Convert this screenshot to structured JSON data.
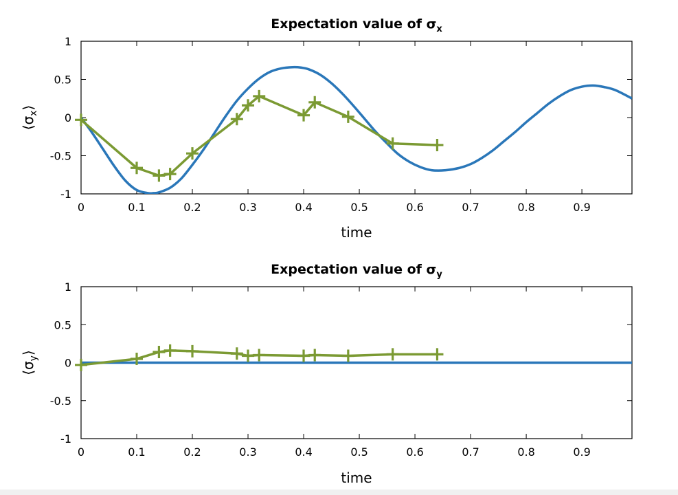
{
  "colors": {
    "exact": "#2a77b9",
    "simulated": "#7b9a33"
  },
  "chart_data": [
    {
      "type": "line",
      "title": "Expectation value of σ",
      "title_subscript": "x",
      "xlabel": "time",
      "ylabel": "⟨σ",
      "ylabel_subscript": "x",
      "ylabel_close": "⟩",
      "xlim": [
        0,
        0.99
      ],
      "ylim": [
        -1,
        1
      ],
      "xticks": [
        0,
        0.1,
        0.2,
        0.3,
        0.4,
        0.5,
        0.6,
        0.7,
        0.8,
        0.9
      ],
      "xtick_labels": [
        "0",
        "0.1",
        "0.2",
        "0.3",
        "0.4",
        "0.5",
        "0.6",
        "0.7",
        "0.8",
        "0.9"
      ],
      "yticks": [
        1,
        0.5,
        0,
        -0.5,
        -1
      ],
      "ytick_labels": [
        "1",
        "0.5",
        "0",
        "-0.5",
        "-1"
      ],
      "series": [
        {
          "style": "line",
          "color": "#2a77b9",
          "x": [
            0,
            0.02,
            0.04,
            0.06,
            0.08,
            0.1,
            0.12,
            0.13,
            0.14,
            0.16,
            0.18,
            0.2,
            0.22,
            0.24,
            0.26,
            0.28,
            0.3,
            0.32,
            0.34,
            0.36,
            0.38,
            0.395,
            0.41,
            0.43,
            0.45,
            0.47,
            0.49,
            0.51,
            0.53,
            0.55,
            0.57,
            0.59,
            0.61,
            0.63,
            0.655,
            0.68,
            0.7,
            0.72,
            0.74,
            0.76,
            0.78,
            0.8,
            0.82,
            0.84,
            0.86,
            0.88,
            0.9,
            0.92,
            0.94,
            0.96,
            0.99
          ],
          "y": [
            0,
            -0.2,
            -0.42,
            -0.64,
            -0.83,
            -0.95,
            -0.99,
            -0.99,
            -0.98,
            -0.92,
            -0.8,
            -0.62,
            -0.42,
            -0.2,
            0.02,
            0.22,
            0.38,
            0.51,
            0.6,
            0.645,
            0.66,
            0.655,
            0.63,
            0.56,
            0.45,
            0.31,
            0.15,
            -0.02,
            -0.19,
            -0.34,
            -0.48,
            -0.58,
            -0.65,
            -0.69,
            -0.69,
            -0.66,
            -0.61,
            -0.53,
            -0.43,
            -0.31,
            -0.19,
            -0.06,
            0.06,
            0.18,
            0.28,
            0.36,
            0.405,
            0.42,
            0.4,
            0.36,
            0.25
          ]
        },
        {
          "style": "line+marker",
          "marker": "+",
          "color": "#7b9a33",
          "x": [
            0,
            0.1,
            0.14,
            0.16,
            0.2,
            0.28,
            0.3,
            0.32,
            0.4,
            0.42,
            0.48,
            0.56,
            0.64
          ],
          "y": [
            -0.03,
            -0.66,
            -0.76,
            -0.74,
            -0.47,
            -0.02,
            0.16,
            0.28,
            0.03,
            0.2,
            0.01,
            -0.34,
            -0.36
          ]
        }
      ]
    },
    {
      "type": "line",
      "title": "Expectation value of σ",
      "title_subscript": "y",
      "xlabel": "time",
      "ylabel": "⟨σ",
      "ylabel_subscript": "y",
      "ylabel_close": "⟩",
      "xlim": [
        0,
        0.99
      ],
      "ylim": [
        -1,
        1
      ],
      "xticks": [
        0,
        0.1,
        0.2,
        0.3,
        0.4,
        0.5,
        0.6,
        0.7,
        0.8,
        0.9
      ],
      "xtick_labels": [
        "0",
        "0.1",
        "0.2",
        "0.3",
        "0.4",
        "0.5",
        "0.6",
        "0.7",
        "0.8",
        "0.9"
      ],
      "yticks": [
        1,
        0.5,
        0,
        -0.5,
        -1
      ],
      "ytick_labels": [
        "1",
        "0.5",
        "0",
        "-0.5",
        "-1"
      ],
      "series": [
        {
          "style": "line",
          "color": "#2a77b9",
          "x": [
            0,
            0.99
          ],
          "y": [
            0,
            0
          ]
        },
        {
          "style": "line+marker",
          "marker": "+",
          "color": "#7b9a33",
          "x": [
            0,
            0.1,
            0.14,
            0.16,
            0.2,
            0.28,
            0.3,
            0.32,
            0.4,
            0.42,
            0.48,
            0.56,
            0.64
          ],
          "y": [
            -0.03,
            0.05,
            0.14,
            0.16,
            0.15,
            0.12,
            0.09,
            0.1,
            0.09,
            0.1,
            0.09,
            0.11,
            0.11
          ]
        }
      ]
    }
  ]
}
